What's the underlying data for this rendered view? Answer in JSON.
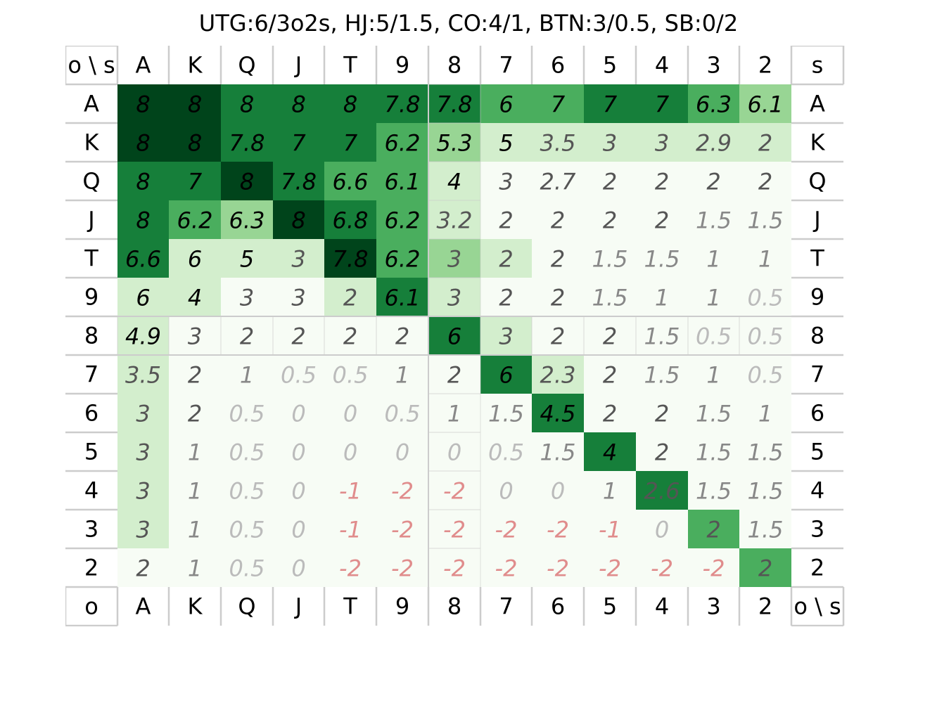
{
  "title": "UTG:6/3o2s, HJ:5/1.5, CO:4/1, BTN:3/0.5, SB:0/2",
  "chart_data": {
    "type": "heatmap",
    "title": "UTG:6/3o2s, HJ:5/1.5, CO:4/1, BTN:3/0.5, SB:0/2",
    "corner_top_left": "o \\ s",
    "corner_top_right": "s",
    "corner_bottom_left": "o",
    "corner_bottom_right": "o \\ s",
    "ranks": [
      "A",
      "K",
      "Q",
      "J",
      "T",
      "9",
      "8",
      "7",
      "6",
      "5",
      "4",
      "3",
      "2"
    ],
    "values": [
      [
        "8",
        "8",
        "8",
        "8",
        "8",
        "7.8",
        "7.8",
        "6",
        "7",
        "7",
        "7",
        "6.3",
        "6.1"
      ],
      [
        "8",
        "8",
        "7.8",
        "7",
        "7",
        "6.2",
        "5.3",
        "5",
        "3.5",
        "3",
        "3",
        "2.9",
        "2"
      ],
      [
        "8",
        "7",
        "8",
        "7.8",
        "6.6",
        "6.1",
        "4",
        "3",
        "2.7",
        "2",
        "2",
        "2",
        "2"
      ],
      [
        "8",
        "6.2",
        "6.3",
        "8",
        "6.8",
        "6.2",
        "3.2",
        "2",
        "2",
        "2",
        "2",
        "1.5",
        "1.5"
      ],
      [
        "6.6",
        "6",
        "5",
        "3",
        "7.8",
        "6.2",
        "3",
        "2",
        "2",
        "1.5",
        "1.5",
        "1",
        "1"
      ],
      [
        "6",
        "4",
        "3",
        "3",
        "2",
        "6.1",
        "3",
        "2",
        "2",
        "1.5",
        "1",
        "1",
        "0.5"
      ],
      [
        "4.9",
        "3",
        "2",
        "2",
        "2",
        "2",
        "6",
        "3",
        "2",
        "2",
        "1.5",
        "0.5",
        "0.5"
      ],
      [
        "3.5",
        "2",
        "1",
        "0.5",
        "0.5",
        "1",
        "2",
        "6",
        "2.3",
        "2",
        "1.5",
        "1",
        "0.5"
      ],
      [
        "3",
        "2",
        "0.5",
        "0",
        "0",
        "0.5",
        "1",
        "1.5",
        "4.5",
        "2",
        "2",
        "1.5",
        "1"
      ],
      [
        "3",
        "1",
        "0.5",
        "0",
        "0",
        "0",
        "0",
        "0.5",
        "1.5",
        "4",
        "2",
        "1.5",
        "1.5"
      ],
      [
        "3",
        "1",
        "0.5",
        "0",
        "-1",
        "-2",
        "-2",
        "0",
        "0",
        "1",
        "2.6",
        "1.5",
        "1.5"
      ],
      [
        "3",
        "1",
        "0.5",
        "0",
        "-1",
        "-2",
        "-2",
        "-2",
        "-2",
        "-1",
        "0",
        "2",
        "1.5"
      ],
      [
        "2",
        "1",
        "0.5",
        "0",
        "-2",
        "-2",
        "-2",
        "-2",
        "-2",
        "-2",
        "-2",
        "-2",
        "2"
      ]
    ],
    "cell_colors": [
      [
        "#00441b",
        "#00441b",
        "#167f3a",
        "#167f3a",
        "#167f3a",
        "#167f3a",
        "#167f3a",
        "#4aae5e",
        "#4aae5e",
        "#167f3a",
        "#167f3a",
        "#4aae5e",
        "#98d594"
      ],
      [
        "#00441b",
        "#00441b",
        "#167f3a",
        "#167f3a",
        "#167f3a",
        "#4aae5e",
        "#98d594",
        "#d3eecd",
        "#d3eecd",
        "#d3eecd",
        "#d3eecd",
        "#d3eecd",
        "#d3eecd"
      ],
      [
        "#167f3a",
        "#167f3a",
        "#00441b",
        "#167f3a",
        "#4aae5e",
        "#4aae5e",
        "#d3eecd",
        "#f7fcf5",
        "#f7fcf5",
        "#f7fcf5",
        "#f7fcf5",
        "#f7fcf5",
        "#f7fcf5"
      ],
      [
        "#167f3a",
        "#4aae5e",
        "#98d594",
        "#00441b",
        "#167f3a",
        "#4aae5e",
        "#d3eecd",
        "#f7fcf5",
        "#f7fcf5",
        "#f7fcf5",
        "#f7fcf5",
        "#f7fcf5",
        "#f7fcf5"
      ],
      [
        "#167f3a",
        "#d3eecd",
        "#d3eecd",
        "#d3eecd",
        "#00441b",
        "#4aae5e",
        "#98d594",
        "#d3eecd",
        "#f7fcf5",
        "#f7fcf5",
        "#f7fcf5",
        "#f7fcf5",
        "#f7fcf5"
      ],
      [
        "#d3eecd",
        "#d3eecd",
        "#f7fcf5",
        "#f7fcf5",
        "#d3eecd",
        "#167f3a",
        "#d3eecd",
        "#f7fcf5",
        "#f7fcf5",
        "#f7fcf5",
        "#f7fcf5",
        "#f7fcf5",
        "#f7fcf5"
      ],
      [
        "#d3eecd",
        "#f7fcf5",
        "#f7fcf5",
        "#f7fcf5",
        "#f7fcf5",
        "#f7fcf5",
        "#167f3a",
        "#d3eecd",
        "#f7fcf5",
        "#f7fcf5",
        "#f7fcf5",
        "#f7fcf5",
        "#f7fcf5"
      ],
      [
        "#d3eecd",
        "#f7fcf5",
        "#f7fcf5",
        "#f7fcf5",
        "#f7fcf5",
        "#f7fcf5",
        "#f7fcf5",
        "#167f3a",
        "#d3eecd",
        "#f7fcf5",
        "#f7fcf5",
        "#f7fcf5",
        "#f7fcf5"
      ],
      [
        "#d3eecd",
        "#f7fcf5",
        "#f7fcf5",
        "#f7fcf5",
        "#f7fcf5",
        "#f7fcf5",
        "#f7fcf5",
        "#f7fcf5",
        "#167f3a",
        "#f7fcf5",
        "#f7fcf5",
        "#f7fcf5",
        "#f7fcf5"
      ],
      [
        "#d3eecd",
        "#f7fcf5",
        "#f7fcf5",
        "#f7fcf5",
        "#f7fcf5",
        "#f7fcf5",
        "#f7fcf5",
        "#f7fcf5",
        "#f7fcf5",
        "#167f3a",
        "#f7fcf5",
        "#f7fcf5",
        "#f7fcf5"
      ],
      [
        "#d3eecd",
        "#f7fcf5",
        "#f7fcf5",
        "#f7fcf5",
        "#f7fcf5",
        "#f7fcf5",
        "#f7fcf5",
        "#f7fcf5",
        "#f7fcf5",
        "#f7fcf5",
        "#167f3a",
        "#f7fcf5",
        "#f7fcf5"
      ],
      [
        "#d3eecd",
        "#f7fcf5",
        "#f7fcf5",
        "#f7fcf5",
        "#f7fcf5",
        "#f7fcf5",
        "#f7fcf5",
        "#f7fcf5",
        "#f7fcf5",
        "#f7fcf5",
        "#f7fcf5",
        "#4aae5e",
        "#f7fcf5"
      ],
      [
        "#f7fcf5",
        "#f7fcf5",
        "#f7fcf5",
        "#f7fcf5",
        "#f7fcf5",
        "#f7fcf5",
        "#f7fcf5",
        "#f7fcf5",
        "#f7fcf5",
        "#f7fcf5",
        "#f7fcf5",
        "#f7fcf5",
        "#4aae5e"
      ]
    ],
    "value_text_colors": {
      "high": "#000000",
      "mid": "#555555",
      "low": "#888888",
      "zero": "#bbbbbb",
      "negative": "#e08c8c"
    },
    "grid_line_color": "#cccccc"
  }
}
